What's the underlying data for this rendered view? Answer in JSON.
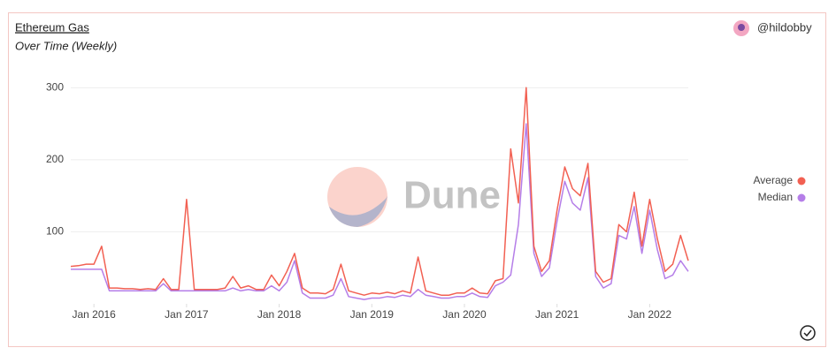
{
  "chart_data": {
    "type": "line",
    "title": "Ethereum Gas",
    "subtitle": "Over Time (Weekly)",
    "author": "@hildobby",
    "watermark": "Dune",
    "x": [
      "2015-10",
      "2015-11",
      "2015-12",
      "2016-01",
      "2016-02",
      "2016-03",
      "2016-04",
      "2016-05",
      "2016-06",
      "2016-07",
      "2016-08",
      "2016-09",
      "2016-10",
      "2016-11",
      "2016-12",
      "2017-01",
      "2017-02",
      "2017-03",
      "2017-04",
      "2017-05",
      "2017-06",
      "2017-07",
      "2017-08",
      "2017-09",
      "2017-10",
      "2017-11",
      "2017-12",
      "2018-01",
      "2018-02",
      "2018-03",
      "2018-04",
      "2018-05",
      "2018-06",
      "2018-07",
      "2018-08",
      "2018-09",
      "2018-10",
      "2018-11",
      "2018-12",
      "2019-01",
      "2019-02",
      "2019-03",
      "2019-04",
      "2019-05",
      "2019-06",
      "2019-07",
      "2019-08",
      "2019-09",
      "2019-10",
      "2019-11",
      "2019-12",
      "2020-01",
      "2020-02",
      "2020-03",
      "2020-04",
      "2020-05",
      "2020-06",
      "2020-07",
      "2020-08",
      "2020-09",
      "2020-10",
      "2020-11",
      "2020-12",
      "2021-01",
      "2021-02",
      "2021-03",
      "2021-04",
      "2021-05",
      "2021-06",
      "2021-07",
      "2021-08",
      "2021-09",
      "2021-10",
      "2021-11",
      "2021-12",
      "2022-01",
      "2022-02",
      "2022-03",
      "2022-04",
      "2022-05",
      "2022-06"
    ],
    "series": [
      {
        "name": "Average",
        "color": "#f26052",
        "values": [
          52,
          53,
          55,
          55,
          80,
          22,
          22,
          21,
          21,
          20,
          21,
          20,
          35,
          20,
          20,
          145,
          20,
          20,
          20,
          20,
          22,
          38,
          22,
          25,
          20,
          20,
          40,
          25,
          45,
          70,
          22,
          15,
          15,
          14,
          20,
          55,
          18,
          15,
          12,
          15,
          14,
          16,
          14,
          18,
          15,
          65,
          18,
          15,
          12,
          12,
          15,
          15,
          22,
          15,
          14,
          32,
          35,
          215,
          140,
          300,
          80,
          45,
          60,
          130,
          190,
          160,
          150,
          195,
          45,
          30,
          35,
          110,
          100,
          155,
          80,
          145,
          90,
          45,
          55,
          95,
          60
        ]
      },
      {
        "name": "Median",
        "color": "#b57ee8",
        "values": [
          48,
          48,
          48,
          48,
          48,
          18,
          18,
          18,
          18,
          18,
          18,
          18,
          28,
          18,
          18,
          18,
          18,
          18,
          18,
          18,
          18,
          22,
          18,
          20,
          18,
          18,
          25,
          18,
          30,
          60,
          15,
          8,
          8,
          8,
          12,
          35,
          10,
          8,
          6,
          8,
          8,
          10,
          9,
          12,
          10,
          20,
          12,
          10,
          8,
          8,
          10,
          10,
          15,
          10,
          9,
          25,
          30,
          40,
          110,
          250,
          70,
          38,
          50,
          115,
          170,
          140,
          130,
          175,
          38,
          22,
          28,
          95,
          90,
          135,
          70,
          130,
          75,
          35,
          40,
          60,
          45
        ]
      }
    ],
    "xlim": [
      "2015-10",
      "2022-06"
    ],
    "xticks": [
      {
        "value": "2016-01",
        "label": "Jan 2016"
      },
      {
        "value": "2017-01",
        "label": "Jan 2017"
      },
      {
        "value": "2018-01",
        "label": "Jan 2018"
      },
      {
        "value": "2019-01",
        "label": "Jan 2019"
      },
      {
        "value": "2020-01",
        "label": "Jan 2020"
      },
      {
        "value": "2021-01",
        "label": "Jan 2021"
      },
      {
        "value": "2022-01",
        "label": "Jan 2022"
      }
    ],
    "ylim": [
      0,
      320
    ],
    "yticks": [
      100,
      200,
      300
    ],
    "grid": true,
    "legend": "right"
  }
}
